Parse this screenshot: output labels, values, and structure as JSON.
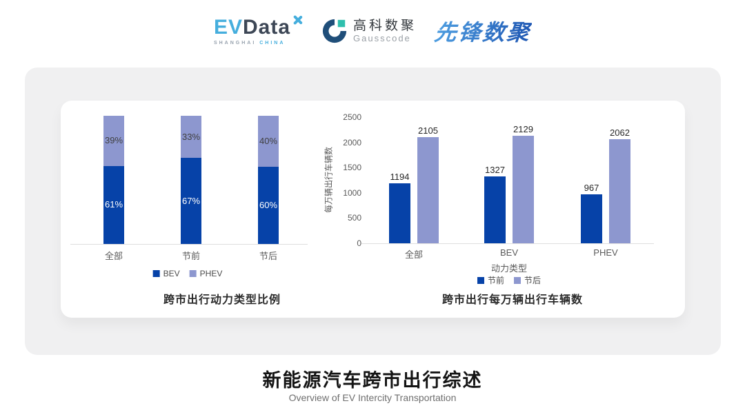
{
  "header": {
    "evdata": {
      "ev": "EV",
      "data": "Data",
      "line2_a": "SHANGHAI",
      "line2_b": "CHINA"
    },
    "gausscode": {
      "name_cn": "高科数聚",
      "name_en": "Gausscode"
    },
    "pioneer": {
      "name": "先锋数聚"
    }
  },
  "footer": {
    "title": "新能源汽车跨市出行综述",
    "subtitle": "Overview of EV Intercity Transportation"
  },
  "colors": {
    "dark_blue": "#0642A8",
    "light_blue": "#8D97CF",
    "evdata_blue": "#45AEDD",
    "evdata_dark": "#3D4756",
    "gausscode_navy": "#1F4E79",
    "gausscode_teal": "#2FBFAD",
    "card_gray": "#F0F0F1"
  },
  "chart_data": [
    {
      "type": "bar",
      "subtype": "stacked-100-percent",
      "title": "跨市出行动力类型比例",
      "categories": [
        "全部",
        "节前",
        "节后"
      ],
      "series": [
        {
          "name": "BEV",
          "values": [
            61,
            67,
            60
          ],
          "color": "#0642A8",
          "unit": "%"
        },
        {
          "name": "PHEV",
          "values": [
            39,
            33,
            40
          ],
          "color": "#8D97CF",
          "unit": "%"
        }
      ],
      "ylim": [
        0,
        100
      ],
      "grid": false,
      "legend_position": "bottom"
    },
    {
      "type": "bar",
      "subtype": "grouped",
      "title": "跨市出行每万辆出行车辆数",
      "categories": [
        "全部",
        "BEV",
        "PHEV"
      ],
      "xlabel": "动力类型",
      "ylabel": "每万辆出行车辆数",
      "yticks": [
        0,
        500,
        1000,
        1500,
        2000,
        2500
      ],
      "ylim": [
        0,
        2500
      ],
      "series": [
        {
          "name": "节前",
          "values": [
            1194,
            1327,
            967
          ],
          "color": "#0642A8"
        },
        {
          "name": "节后",
          "values": [
            2105,
            2129,
            2062
          ],
          "color": "#8D97CF"
        }
      ],
      "grid": false,
      "legend_position": "bottom"
    }
  ]
}
